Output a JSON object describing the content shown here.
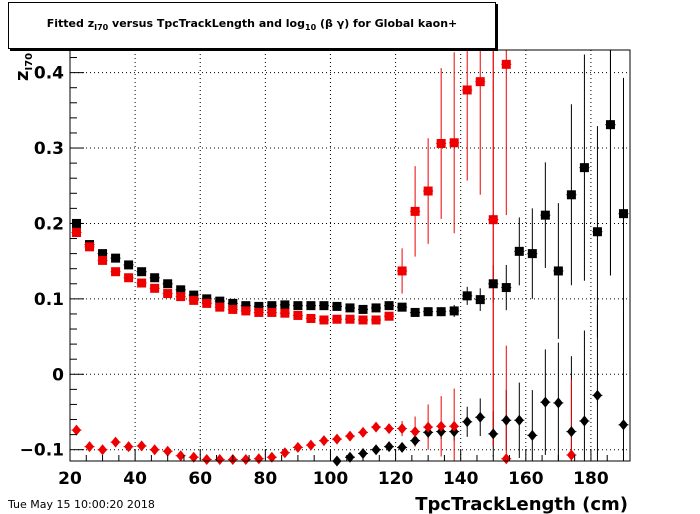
{
  "title": {
    "pre": "Fitted  z",
    "sub1": "I70",
    "mid": "  versus TpcTrackLength and log",
    "sub2": "10",
    "post": " (β γ) for Global kaon+"
  },
  "timestamp": "Tue May 15 10:00:20 2018",
  "colors": {
    "black": "#000000",
    "red": "#ee0000"
  },
  "chart_data": {
    "type": "scatter",
    "xlabel": "TpcTrackLength (cm)",
    "ylabel": "z",
    "ylabel_sub": "I70",
    "xlim": [
      20,
      192
    ],
    "ylim": [
      -0.115,
      0.43
    ],
    "x_ticks": [
      20,
      40,
      60,
      80,
      100,
      120,
      140,
      160,
      180
    ],
    "y_ticks": [
      -0.1,
      0,
      0.1,
      0.2,
      0.3,
      0.4
    ],
    "y_tick_labels": [
      "−0.1",
      "0",
      "0.1",
      "0.2",
      "0.3",
      "0.4"
    ],
    "grid": true,
    "series": [
      {
        "marker": "square",
        "color": "#000000",
        "x": [
          22,
          26,
          30,
          34,
          38,
          42,
          46,
          50,
          54,
          58,
          62,
          66,
          70,
          74,
          78,
          82,
          86,
          90,
          94,
          98,
          102,
          106,
          110,
          114,
          118,
          122,
          126,
          130,
          134,
          138,
          142,
          146,
          150,
          154,
          158,
          162,
          166,
          170,
          174,
          178,
          182,
          186,
          190
        ],
        "y": [
          0.2,
          0.172,
          0.16,
          0.154,
          0.145,
          0.136,
          0.128,
          0.12,
          0.112,
          0.105,
          0.1,
          0.097,
          0.094,
          0.091,
          0.09,
          0.091,
          0.092,
          0.091,
          0.091,
          0.091,
          0.09,
          0.088,
          0.086,
          0.088,
          0.091,
          0.089,
          0.082,
          0.083,
          0.083,
          0.084,
          0.104,
          0.099,
          0.12,
          0.115,
          0.163,
          0.16,
          0.211,
          0.137,
          0.238,
          0.274,
          0.189,
          0.331,
          0.213
        ],
        "err": [
          0.004,
          0.003,
          0.003,
          0.003,
          0.003,
          0.003,
          0.003,
          0.003,
          0.003,
          0.003,
          0.003,
          0.003,
          0.003,
          0.003,
          0.003,
          0.003,
          0.003,
          0.003,
          0.003,
          0.003,
          0.003,
          0.003,
          0.003,
          0.003,
          0.004,
          0.005,
          0.005,
          0.006,
          0.006,
          0.008,
          0.012,
          0.015,
          0.025,
          0.03,
          0.045,
          0.06,
          0.07,
          0.09,
          0.12,
          0.15,
          0.14,
          0.2,
          0.18
        ]
      },
      {
        "marker": "square",
        "color": "#ee0000",
        "x": [
          22,
          26,
          30,
          34,
          38,
          42,
          46,
          50,
          54,
          58,
          62,
          66,
          70,
          74,
          78,
          82,
          86,
          90,
          94,
          98,
          102,
          106,
          110,
          114,
          118,
          122,
          126,
          130,
          134,
          138,
          142,
          146,
          150,
          154
        ],
        "y": [
          0.188,
          0.169,
          0.151,
          0.136,
          0.128,
          0.121,
          0.114,
          0.107,
          0.103,
          0.098,
          0.094,
          0.089,
          0.086,
          0.084,
          0.082,
          0.082,
          0.081,
          0.078,
          0.074,
          0.072,
          0.073,
          0.073,
          0.072,
          0.072,
          0.077,
          0.137,
          0.216,
          0.243,
          0.306,
          0.307,
          0.377,
          0.388,
          0.205,
          0.411
        ],
        "err": [
          0.004,
          0.003,
          0.003,
          0.003,
          0.003,
          0.003,
          0.003,
          0.003,
          0.003,
          0.003,
          0.003,
          0.003,
          0.003,
          0.003,
          0.003,
          0.003,
          0.003,
          0.003,
          0.003,
          0.003,
          0.003,
          0.003,
          0.003,
          0.003,
          0.004,
          0.03,
          0.06,
          0.07,
          0.1,
          0.12,
          0.12,
          0.15,
          0.3,
          0.2
        ]
      },
      {
        "marker": "diamond",
        "color": "#000000",
        "x": [
          102,
          106,
          110,
          114,
          118,
          122,
          126,
          130,
          134,
          138,
          142,
          146,
          150,
          154,
          158,
          162,
          166,
          170,
          174,
          178,
          182,
          186,
          190
        ],
        "y": [
          -0.115,
          -0.11,
          -0.105,
          -0.1,
          -0.096,
          -0.097,
          -0.088,
          -0.077,
          -0.076,
          -0.076,
          -0.063,
          -0.057,
          -0.079,
          -0.061,
          -0.061,
          -0.081,
          -0.037,
          -0.038,
          -0.076,
          -0.062,
          -0.028,
          0.331,
          -0.067
        ],
        "err": [
          0.003,
          0.003,
          0.003,
          0.003,
          0.004,
          0.005,
          0.006,
          0.008,
          0.01,
          0.012,
          0.02,
          0.025,
          0.03,
          0.04,
          0.05,
          0.06,
          0.07,
          0.08,
          0.1,
          0.12,
          0.12,
          0.2,
          0.15
        ]
      },
      {
        "marker": "diamond",
        "color": "#ee0000",
        "x": [
          22,
          26,
          30,
          34,
          38,
          42,
          46,
          50,
          54,
          58,
          62,
          66,
          70,
          74,
          78,
          82,
          86,
          90,
          94,
          98,
          102,
          106,
          110,
          114,
          118,
          122,
          126,
          130,
          134,
          138,
          150,
          154,
          174
        ],
        "y": [
          -0.074,
          -0.096,
          -0.1,
          -0.09,
          -0.096,
          -0.095,
          -0.1,
          -0.102,
          -0.108,
          -0.11,
          -0.113,
          -0.113,
          -0.113,
          -0.113,
          -0.112,
          -0.11,
          -0.104,
          -0.097,
          -0.094,
          -0.088,
          -0.086,
          -0.082,
          -0.077,
          -0.07,
          -0.072,
          -0.072,
          -0.076,
          -0.07,
          -0.069,
          -0.069,
          0.205,
          -0.112,
          -0.107
        ],
        "err": [
          0.004,
          0.003,
          0.003,
          0.003,
          0.003,
          0.003,
          0.003,
          0.003,
          0.003,
          0.003,
          0.003,
          0.003,
          0.003,
          0.003,
          0.003,
          0.003,
          0.003,
          0.003,
          0.003,
          0.003,
          0.003,
          0.003,
          0.003,
          0.003,
          0.004,
          0.01,
          0.02,
          0.03,
          0.04,
          0.05,
          0.3,
          0.15,
          0.1
        ]
      }
    ]
  }
}
